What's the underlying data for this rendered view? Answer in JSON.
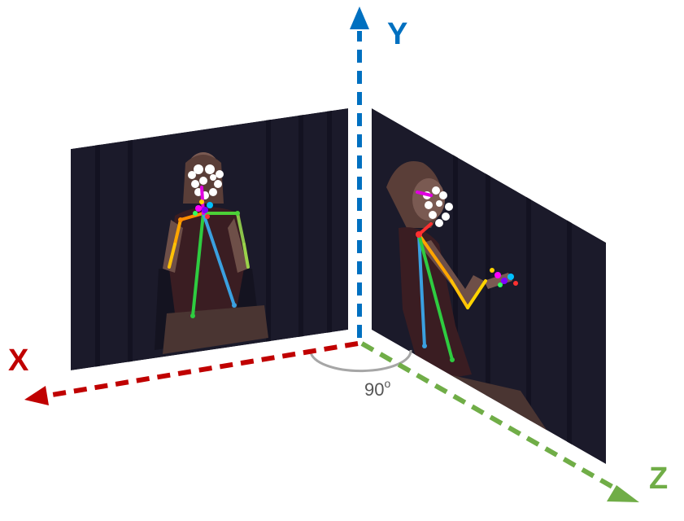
{
  "axes": {
    "x": {
      "label": "X",
      "color": "#c00000"
    },
    "y": {
      "label": "Y",
      "color": "#0070c0"
    },
    "z": {
      "label": "Z",
      "color": "#70ad47"
    }
  },
  "angle": {
    "value": "90",
    "superscript": "o",
    "color": "#a6a6a6"
  },
  "colors": {
    "panel_background": "#1b1a2a",
    "curtain_fold": "#121120",
    "skin": "#7a5a52",
    "clothing": "#3a1d22",
    "face_marker": "#ffffff"
  }
}
